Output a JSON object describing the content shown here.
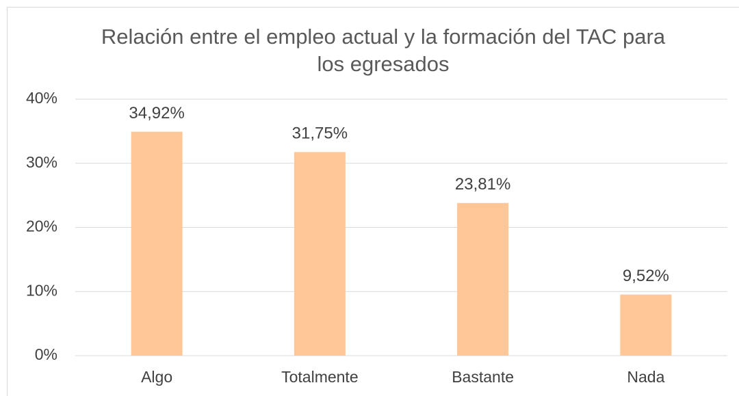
{
  "chart_data": {
    "type": "bar",
    "title": "Relación entre el empleo actual y la formación del TAC para los egresados",
    "categories": [
      "Algo",
      "Totalmente",
      "Bastante",
      "Nada"
    ],
    "values": [
      34.92,
      31.75,
      23.81,
      9.52
    ],
    "value_labels": [
      "34,92%",
      "31,75%",
      "23,81%",
      "9,52%"
    ],
    "color": "#ffc697",
    "ylim": [
      0,
      40
    ],
    "yticks": [
      {
        "value": 0,
        "label": "0%"
      },
      {
        "value": 10,
        "label": "10%"
      },
      {
        "value": 20,
        "label": "20%"
      },
      {
        "value": 30,
        "label": "30%"
      },
      {
        "value": 40,
        "label": "40%"
      }
    ],
    "grid": true
  }
}
